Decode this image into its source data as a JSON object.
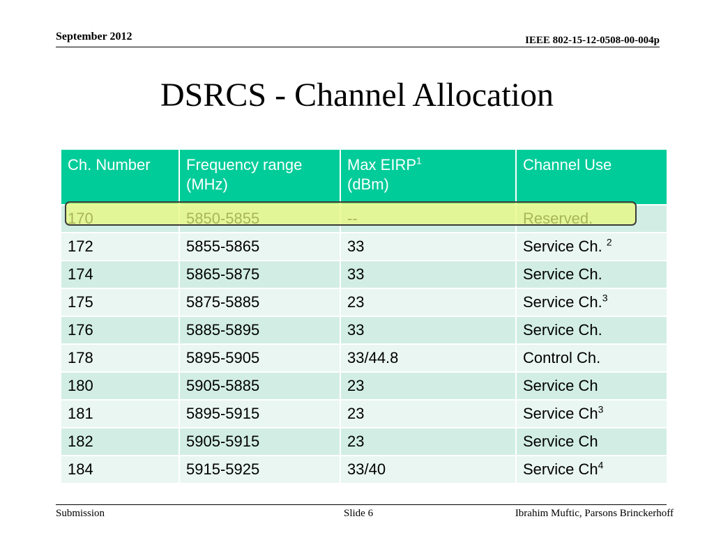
{
  "header": {
    "date": "September 2012",
    "document_id": "IEEE 802-15-12-0508-00-004p"
  },
  "title": "DSRCS - Channel Allocation",
  "table": {
    "headers": [
      {
        "line1": "Ch. Number",
        "line2": "",
        "sup": ""
      },
      {
        "line1": "Frequency range",
        "line2": "(MHz)",
        "sup": ""
      },
      {
        "line1": "Max EIRP",
        "line2": "(dBm)",
        "sup": "1"
      },
      {
        "line1": "Channel Use",
        "line2": "",
        "sup": ""
      }
    ],
    "rows": [
      {
        "ch": "170",
        "freq": "5850-5855",
        "eirp": "--",
        "use": "Reserved.",
        "use_sup": ""
      },
      {
        "ch": "172",
        "freq": "5855-5865",
        "eirp": "33",
        "use": "Service Ch. ",
        "use_sup": "2"
      },
      {
        "ch": "174",
        "freq": "5865-5875",
        "eirp": "33",
        "use": "Service Ch.",
        "use_sup": ""
      },
      {
        "ch": "175",
        "freq": "5875-5885",
        "eirp": "23",
        "use": "Service Ch.",
        "use_sup": "3"
      },
      {
        "ch": "176",
        "freq": "5885-5895",
        "eirp": "33",
        "use": "Service Ch.",
        "use_sup": ""
      },
      {
        "ch": "178",
        "freq": "5895-5905",
        "eirp": "33/44.8",
        "use": "Control Ch.",
        "use_sup": ""
      },
      {
        "ch": "180",
        "freq": "5905-5885",
        "eirp": "23",
        "use": "Service Ch",
        "use_sup": ""
      },
      {
        "ch": "181",
        "freq": "5895-5915",
        "eirp": "23",
        "use": "Service Ch",
        "use_sup": "3"
      },
      {
        "ch": "182",
        "freq": "5905-5915",
        "eirp": "23",
        "use": "Service Ch",
        "use_sup": ""
      },
      {
        "ch": "184",
        "freq": "5915-5925",
        "eirp": "33/40",
        "use": "Service Ch",
        "use_sup": "4"
      }
    ],
    "colors": {
      "header_bg": "#00cc99",
      "row_dark": "#d2eee4",
      "row_light": "#e9f6f1",
      "highlight": "#e8f979"
    }
  },
  "footer": {
    "left": "Submission",
    "center": "Slide 6",
    "right": "Ibrahim Muftic, Parsons Brinckerhoff"
  }
}
